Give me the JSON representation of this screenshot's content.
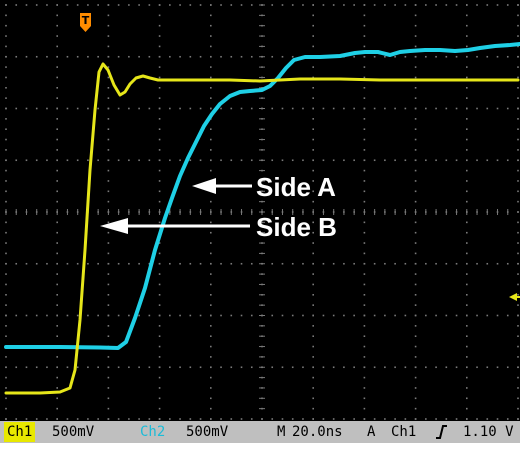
{
  "screen": {
    "background": "#000000",
    "grid_color": "#7a7a7a",
    "divisions_x": 10,
    "divisions_y": 8
  },
  "traces": {
    "ch1": {
      "name": "Ch1",
      "color": "#e6e61a"
    },
    "ch2": {
      "name": "Ch2",
      "color": "#1fd0e6"
    }
  },
  "markers": {
    "trigger_top_label": "T",
    "trigger_top_color": "#ff8c00",
    "trigger_level_color": "#e6e61a"
  },
  "annotations": {
    "side_a": "Side A",
    "side_b": "Side B"
  },
  "status_bar": {
    "ch1_label": "Ch1",
    "ch1_scale": "500mV",
    "ch2_label": "Ch2",
    "ch2_scale": "500mV",
    "timebase_mode": "M",
    "timebase": "20.0ns",
    "trigger_mode": "A",
    "trigger_source": "Ch1",
    "trigger_slope_icon": "rising-edge-icon",
    "trigger_level": "1.10 V"
  }
}
